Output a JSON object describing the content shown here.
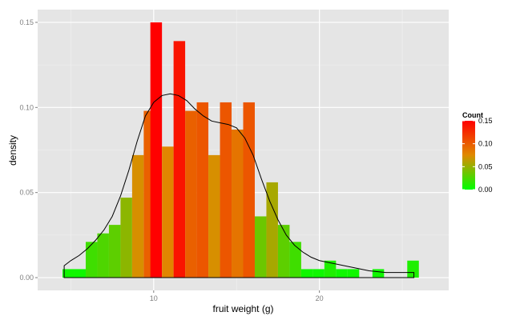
{
  "chart_data": {
    "type": "bar",
    "title": "",
    "xlabel": "fruit weight (g)",
    "ylabel": "density",
    "xlim": [
      3.0,
      27.8
    ],
    "ylim": [
      -0.0075,
      0.1575
    ],
    "x_ticks": [
      10,
      20
    ],
    "x_tick_labels": [
      "10",
      "20"
    ],
    "y_ticks": [
      0.0,
      0.05,
      0.1,
      0.15
    ],
    "y_tick_labels": [
      "0.00",
      "0.05",
      "0.10",
      "0.15"
    ],
    "grid": true,
    "bin_width": 0.7,
    "bins": [
      {
        "x": 4.85,
        "density": 0.005
      },
      {
        "x": 5.55,
        "density": 0.005
      },
      {
        "x": 6.25,
        "density": 0.021
      },
      {
        "x": 6.95,
        "density": 0.026
      },
      {
        "x": 7.65,
        "density": 0.031
      },
      {
        "x": 8.35,
        "density": 0.047
      },
      {
        "x": 9.05,
        "density": 0.072
      },
      {
        "x": 9.75,
        "density": 0.098
      },
      {
        "x": 10.15,
        "density": 0.15
      },
      {
        "x": 10.85,
        "density": 0.077
      },
      {
        "x": 11.55,
        "density": 0.139
      },
      {
        "x": 12.25,
        "density": 0.098
      },
      {
        "x": 12.95,
        "density": 0.103
      },
      {
        "x": 13.65,
        "density": 0.072
      },
      {
        "x": 14.35,
        "density": 0.103
      },
      {
        "x": 15.05,
        "density": 0.087
      },
      {
        "x": 15.75,
        "density": 0.103
      },
      {
        "x": 16.45,
        "density": 0.036
      },
      {
        "x": 17.15,
        "density": 0.056
      },
      {
        "x": 17.85,
        "density": 0.031
      },
      {
        "x": 18.55,
        "density": 0.021
      },
      {
        "x": 19.25,
        "density": 0.005
      },
      {
        "x": 19.95,
        "density": 0.005
      },
      {
        "x": 20.65,
        "density": 0.01
      },
      {
        "x": 21.35,
        "density": 0.005
      },
      {
        "x": 22.05,
        "density": 0.005
      },
      {
        "x": 23.55,
        "density": 0.005
      },
      {
        "x": 25.65,
        "density": 0.01
      }
    ],
    "density_curve": {
      "x": [
        4.6,
        5.0,
        5.5,
        6.0,
        6.5,
        7.0,
        7.5,
        8.0,
        8.5,
        9.0,
        9.5,
        10.0,
        10.5,
        11.0,
        11.5,
        12.0,
        12.5,
        13.0,
        13.5,
        14.0,
        14.5,
        15.0,
        15.5,
        16.0,
        16.5,
        17.0,
        17.5,
        18.0,
        18.5,
        19.0,
        19.5,
        20.0,
        20.5,
        21.0,
        22.0,
        23.0,
        24.0,
        25.0,
        25.7
      ],
      "y": [
        0.007,
        0.01,
        0.013,
        0.017,
        0.022,
        0.028,
        0.036,
        0.048,
        0.063,
        0.08,
        0.095,
        0.103,
        0.107,
        0.108,
        0.107,
        0.104,
        0.099,
        0.095,
        0.092,
        0.091,
        0.09,
        0.088,
        0.082,
        0.072,
        0.058,
        0.045,
        0.034,
        0.025,
        0.019,
        0.015,
        0.012,
        0.01,
        0.009,
        0.008,
        0.006,
        0.004,
        0.003,
        0.003,
        0.003
      ]
    },
    "fill_scale": {
      "title": "Count",
      "low_color": "#00ff00",
      "high_color": "#ff0000",
      "range": [
        0.0,
        0.15
      ],
      "breaks": [
        0.0,
        0.05,
        0.1,
        0.15
      ],
      "labels": [
        "0.00",
        "0.05",
        "0.10",
        "0.15"
      ]
    },
    "colors": {
      "panel_background": "#e5e5e5",
      "grid_major": "#ffffff",
      "grid_minor": "#f2f2f2",
      "curve": "#000000"
    }
  }
}
